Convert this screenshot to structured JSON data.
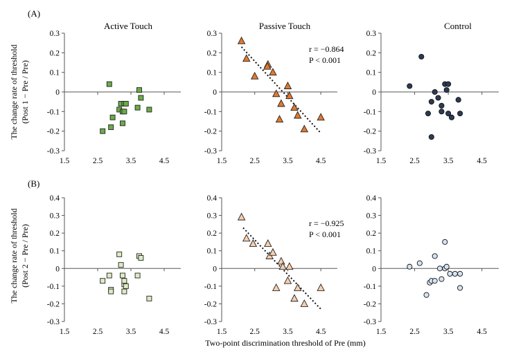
{
  "xlabel": "Two-point discrimination threshold of Pre (mm)",
  "rows": [
    {
      "label": "(A)",
      "ylabel_line1": "The change rate of threshold",
      "ylabel_line2": "(Post 1 − Pre / Pre)",
      "ylim": [
        -0.3,
        0.3
      ],
      "yticks": [
        -0.3,
        -0.2,
        -0.1,
        0,
        0.1,
        0.2,
        0.3
      ],
      "ytick_labels": [
        "-0.3",
        "-0.2",
        "-0.1",
        "0",
        "0.1",
        "0.2",
        "0.3"
      ]
    },
    {
      "label": "(B)",
      "ylabel_line1": "The change rate of threshold",
      "ylabel_line2": "(Post 2 − Pre / Pre)",
      "ylim": [
        -0.3,
        0.4
      ],
      "yticks": [
        -0.3,
        -0.2,
        -0.1,
        0,
        0.1,
        0.2,
        0.3,
        0.4
      ],
      "ytick_labels": [
        "-0.3",
        "-0.2",
        "-0.1",
        "0",
        "0.1",
        "0.2",
        "0.3",
        "0.4"
      ]
    }
  ],
  "column_titles": [
    "Active Touch",
    "Passive Touch",
    "Control"
  ],
  "xlim": [
    1.5,
    5.0
  ],
  "xticks": [
    1.5,
    2.5,
    3.5,
    4.5
  ],
  "xtick_labels": [
    "1.5",
    "2.5",
    "3.5",
    "4.5"
  ],
  "chart_data": [
    {
      "type": "scatter",
      "panel": "A-Active Touch",
      "marker": "square",
      "fill": "#6aac48",
      "stroke": "#222222",
      "x": [
        2.85,
        2.65,
        2.9,
        2.95,
        3.15,
        3.2,
        3.25,
        3.3,
        3.25,
        3.35,
        3.3,
        3.7,
        3.75,
        3.8,
        4.05
      ],
      "y": [
        0.04,
        -0.2,
        -0.18,
        -0.13,
        -0.09,
        -0.06,
        -0.1,
        -0.06,
        -0.16,
        -0.06,
        -0.1,
        -0.08,
        0.01,
        -0.03,
        -0.09
      ]
    },
    {
      "type": "scatter",
      "panel": "A-Passive Touch",
      "marker": "triangle",
      "fill": "#e07a2f",
      "stroke": "#222222",
      "annotation": [
        "r = −0.864",
        "P < 0.001"
      ],
      "trendline": {
        "x": [
          2.1,
          4.5
        ],
        "y": [
          0.23,
          -0.21
        ]
      },
      "x": [
        2.1,
        2.25,
        2.5,
        2.9,
        2.88,
        3.05,
        3.15,
        3.25,
        3.3,
        3.5,
        3.55,
        3.7,
        3.8,
        4.0,
        4.5
      ],
      "y": [
        0.26,
        0.17,
        0.08,
        0.14,
        0.13,
        0.1,
        -0.01,
        -0.14,
        -0.06,
        0.03,
        -0.02,
        -0.08,
        -0.12,
        -0.19,
        -0.13
      ]
    },
    {
      "type": "scatter",
      "panel": "A-Control",
      "marker": "circle",
      "fill": "#2c3a55",
      "stroke": "#111111",
      "x": [
        2.35,
        2.7,
        2.9,
        3.0,
        3.0,
        3.1,
        3.2,
        3.3,
        3.3,
        3.4,
        3.45,
        3.5,
        3.5,
        3.6,
        3.8,
        3.85
      ],
      "y": [
        0.03,
        0.18,
        -0.11,
        -0.05,
        -0.23,
        0.0,
        -0.03,
        -0.07,
        -0.1,
        0.04,
        0.01,
        0.04,
        -0.11,
        -0.13,
        -0.04,
        -0.11
      ]
    },
    {
      "type": "scatter",
      "panel": "B-Active Touch",
      "marker": "square",
      "fill": "#dcebc2",
      "stroke": "#222222",
      "x": [
        2.65,
        2.85,
        2.9,
        2.9,
        3.15,
        3.2,
        3.25,
        3.3,
        3.3,
        3.35,
        3.3,
        3.7,
        3.75,
        3.8,
        4.05
      ],
      "y": [
        -0.07,
        -0.04,
        -0.12,
        -0.13,
        0.08,
        0.02,
        -0.04,
        -0.09,
        -0.13,
        -0.1,
        -0.07,
        -0.04,
        0.07,
        0.06,
        -0.17
      ]
    },
    {
      "type": "scatter",
      "panel": "B-Passive Touch",
      "marker": "triangle",
      "fill": "#f6cfae",
      "stroke": "#222222",
      "annotation": [
        "r = −0.925",
        "P < 0.001"
      ],
      "trendline": {
        "x": [
          2.15,
          4.5
        ],
        "y": [
          0.23,
          -0.23
        ]
      },
      "x": [
        2.1,
        2.25,
        2.45,
        2.9,
        2.95,
        3.05,
        3.15,
        3.3,
        3.35,
        3.5,
        3.55,
        3.7,
        3.8,
        4.0,
        4.5
      ],
      "y": [
        0.29,
        0.17,
        0.14,
        0.14,
        0.07,
        0.09,
        -0.11,
        0.04,
        0.01,
        -0.07,
        0.01,
        -0.17,
        -0.11,
        -0.2,
        -0.11
      ]
    },
    {
      "type": "scatter",
      "panel": "B-Control",
      "marker": "circle",
      "fill": "#d5e3f2",
      "stroke": "#111111",
      "x": [
        2.35,
        2.65,
        2.85,
        2.95,
        3.0,
        3.1,
        3.1,
        3.25,
        3.3,
        3.4,
        3.4,
        3.45,
        3.55,
        3.7,
        3.85,
        3.85
      ],
      "y": [
        0.01,
        0.03,
        -0.15,
        -0.08,
        -0.07,
        0.07,
        -0.07,
        0.0,
        -0.06,
        0.15,
        0.0,
        0.01,
        -0.03,
        -0.03,
        -0.03,
        -0.11
      ]
    }
  ]
}
